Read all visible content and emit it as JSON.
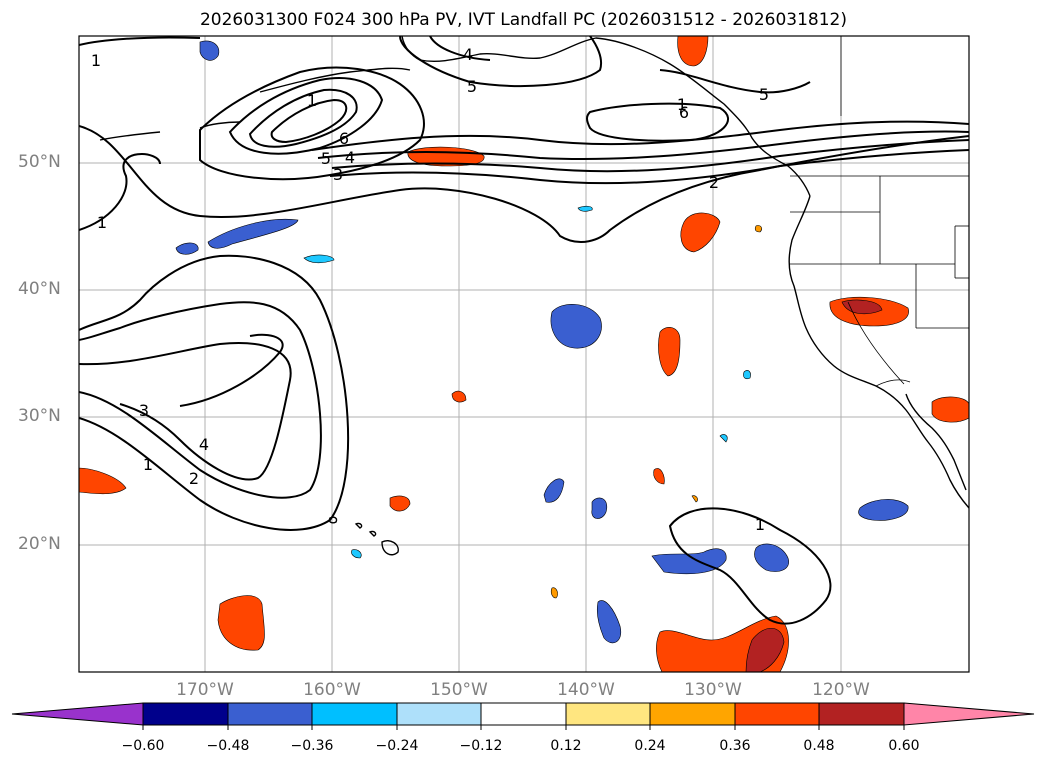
{
  "title": "2026031300 F024 300 hPa PV, IVT Landfall PC (2026031512 - 2026031812)",
  "colors": {
    "coast": "#000000",
    "grid": "#b0b0b0",
    "contour": "#000000",
    "neg_light": "#1ec8ff",
    "neg_mid": "#3a5fd0",
    "pos_light": "#ffe680",
    "pos_mid": "#ff9a00",
    "pos_strong": "#ff4500",
    "pos_max": "#b22222"
  },
  "map": {
    "lat_labels": [
      {
        "text": "50°N",
        "lat": 50
      },
      {
        "text": "40°N",
        "lat": 40
      },
      {
        "text": "30°N",
        "lat": 30
      },
      {
        "text": "20°N",
        "lat": 20
      }
    ],
    "lon_labels": [
      {
        "text": "170°W",
        "lon": -170
      },
      {
        "text": "160°W",
        "lon": -160
      },
      {
        "text": "150°W",
        "lon": -150
      },
      {
        "text": "140°W",
        "lon": -140
      },
      {
        "text": "130°W",
        "lon": -130
      },
      {
        "text": "120°W",
        "lon": -120
      }
    ],
    "contour_labels": [
      {
        "text": "1"
      },
      {
        "text": "1"
      },
      {
        "text": "1"
      },
      {
        "text": "1"
      },
      {
        "text": "6"
      },
      {
        "text": "5"
      },
      {
        "text": "4"
      },
      {
        "text": "3"
      },
      {
        "text": "5"
      },
      {
        "text": "4"
      },
      {
        "text": "5"
      },
      {
        "text": "6"
      },
      {
        "text": "2"
      },
      {
        "text": "3"
      },
      {
        "text": "4"
      },
      {
        "text": "1"
      },
      {
        "text": "2"
      },
      {
        "text": "1"
      }
    ]
  },
  "colorbar": {
    "ticks": [
      "−0.60",
      "−0.48",
      "−0.36",
      "−0.24",
      "−0.12",
      "0.12",
      "0.24",
      "0.36",
      "0.48",
      "0.60"
    ],
    "colors": [
      "#9932cc",
      "#00008b",
      "#3a5fd0",
      "#00bfff",
      "#aee0fa",
      "#ffffff",
      "#ffe680",
      "#ffa500",
      "#ff4500",
      "#b22222",
      "#ff85a8"
    ]
  }
}
